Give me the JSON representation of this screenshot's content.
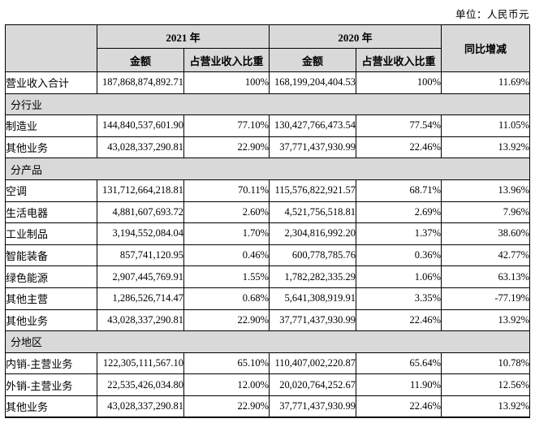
{
  "unit_label": "单位：人民币元",
  "colors": {
    "header_bg": "#d9d9d9",
    "border": "#000000",
    "page_bg": "#ffffff"
  },
  "table": {
    "header": {
      "year_2021": "2021 年",
      "year_2020": "2020 年",
      "amount": "金额",
      "proportion": "占营业收入比重",
      "amount_2020": "金额",
      "proportion_2020": "占营业收入比重",
      "yoy": "同比增减"
    },
    "rows": [
      {
        "type": "data",
        "label": "营业收入合计",
        "a2021": "187,868,874,892.71",
        "p2021": "100%",
        "a2020": "168,199,204,404.53",
        "p2020": "100%",
        "yoy": "11.69%"
      },
      {
        "type": "section",
        "label": "分行业"
      },
      {
        "type": "data",
        "label": "制造业",
        "a2021": "144,840,537,601.90",
        "p2021": "77.10%",
        "a2020": "130,427,766,473.54",
        "p2020": "77.54%",
        "yoy": "11.05%"
      },
      {
        "type": "data",
        "label": "其他业务",
        "a2021": "43,028,337,290.81",
        "p2021": "22.90%",
        "a2020": "37,771,437,930.99",
        "p2020": "22.46%",
        "yoy": "13.92%"
      },
      {
        "type": "section",
        "label": "分产品"
      },
      {
        "type": "data",
        "label": "空调",
        "a2021": "131,712,664,218.81",
        "p2021": "70.11%",
        "a2020": "115,576,822,921.57",
        "p2020": "68.71%",
        "yoy": "13.96%"
      },
      {
        "type": "data",
        "label": "生活电器",
        "a2021": "4,881,607,693.72",
        "p2021": "2.60%",
        "a2020": "4,521,756,518.81",
        "p2020": "2.69%",
        "yoy": "7.96%"
      },
      {
        "type": "data",
        "label": "工业制品",
        "a2021": "3,194,552,084.04",
        "p2021": "1.70%",
        "a2020": "2,304,816,992.20",
        "p2020": "1.37%",
        "yoy": "38.60%"
      },
      {
        "type": "data",
        "label": "智能装备",
        "a2021": "857,741,120.95",
        "p2021": "0.46%",
        "a2020": "600,778,785.76",
        "p2020": "0.36%",
        "yoy": "42.77%"
      },
      {
        "type": "data",
        "label": "绿色能源",
        "a2021": "2,907,445,769.91",
        "p2021": "1.55%",
        "a2020": "1,782,282,335.29",
        "p2020": "1.06%",
        "yoy": "63.13%"
      },
      {
        "type": "data",
        "label": "其他主营",
        "a2021": "1,286,526,714.47",
        "p2021": "0.68%",
        "a2020": "5,641,308,919.91",
        "p2020": "3.35%",
        "yoy": "-77.19%"
      },
      {
        "type": "data",
        "label": "其他业务",
        "a2021": "43,028,337,290.81",
        "p2021": "22.90%",
        "a2020": "37,771,437,930.99",
        "p2020": "22.46%",
        "yoy": "13.92%"
      },
      {
        "type": "section",
        "label": "分地区"
      },
      {
        "type": "data",
        "label": "内销-主营业务",
        "a2021": "122,305,111,567.10",
        "p2021": "65.10%",
        "a2020": "110,407,002,220.87",
        "p2020": "65.64%",
        "yoy": "10.78%"
      },
      {
        "type": "data",
        "label": "外销-主营业务",
        "a2021": "22,535,426,034.80",
        "p2021": "12.00%",
        "a2020": "20,020,764,252.67",
        "p2020": "11.90%",
        "yoy": "12.56%"
      },
      {
        "type": "data",
        "label": "其他业务",
        "a2021": "43,028,337,290.81",
        "p2021": "22.90%",
        "a2020": "37,771,437,930.99",
        "p2020": "22.46%",
        "yoy": "13.92%"
      }
    ]
  }
}
